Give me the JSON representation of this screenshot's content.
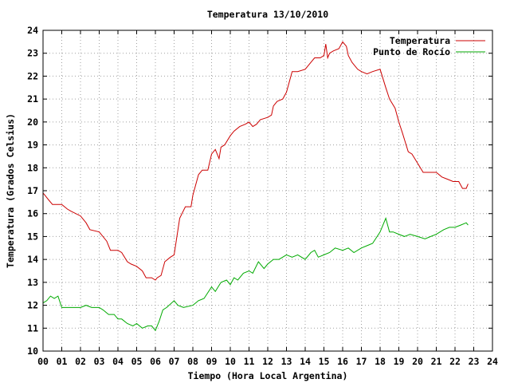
{
  "chart_data": {
    "type": "line",
    "title": "Temperatura 13/10/2010",
    "xlabel": "Tiempo (Hora Local Argentina)",
    "ylabel": "Temperatura (Grados Celsius)",
    "xlim": [
      0,
      24
    ],
    "ylim": [
      10,
      24
    ],
    "grid": true,
    "legend_position": "top-right",
    "x_tick_labels": [
      "00",
      "01",
      "02",
      "03",
      "04",
      "05",
      "06",
      "07",
      "08",
      "09",
      "10",
      "11",
      "12",
      "13",
      "14",
      "15",
      "16",
      "17",
      "18",
      "19",
      "20",
      "21",
      "22",
      "23",
      "24"
    ],
    "y_tick_labels": [
      "10",
      "11",
      "12",
      "13",
      "14",
      "15",
      "16",
      "17",
      "18",
      "19",
      "20",
      "21",
      "22",
      "23",
      "24"
    ],
    "series": [
      {
        "name": "Temperatura",
        "color": "#cc0000",
        "x": [
          0,
          0.1,
          0.3,
          0.5,
          0.8,
          1.0,
          1.3,
          1.5,
          2.0,
          2.3,
          2.5,
          3.0,
          3.4,
          3.6,
          4.0,
          4.2,
          4.5,
          4.7,
          5.0,
          5.3,
          5.5,
          5.8,
          6.0,
          6.1,
          6.3,
          6.5,
          6.8,
          7.0,
          7.3,
          7.6,
          7.9,
          8.0,
          8.3,
          8.5,
          8.8,
          9.0,
          9.2,
          9.4,
          9.5,
          9.7,
          10.0,
          10.2,
          10.5,
          10.8,
          11.0,
          11.2,
          11.4,
          11.6,
          12.0,
          12.2,
          12.3,
          12.5,
          12.8,
          13.0,
          13.3,
          13.6,
          14.0,
          14.3,
          14.5,
          14.8,
          15.0,
          15.1,
          15.2,
          15.3,
          15.5,
          15.8,
          16.0,
          16.2,
          16.3,
          16.5,
          16.8,
          17.0,
          17.3,
          17.6,
          18.0,
          18.3,
          18.5,
          18.8,
          19.0,
          19.2,
          19.5,
          19.7,
          20.0,
          20.3,
          20.7,
          21.0,
          21.3,
          21.6,
          21.9,
          22.2,
          22.4,
          22.6,
          22.7
        ],
        "values": [
          16.9,
          16.8,
          16.6,
          16.4,
          16.4,
          16.4,
          16.2,
          16.1,
          15.9,
          15.6,
          15.3,
          15.2,
          14.8,
          14.4,
          14.4,
          14.3,
          13.9,
          13.8,
          13.7,
          13.5,
          13.2,
          13.2,
          13.1,
          13.2,
          13.3,
          13.9,
          14.1,
          14.2,
          15.8,
          16.3,
          16.3,
          16.8,
          17.7,
          17.9,
          17.9,
          18.6,
          18.8,
          18.4,
          18.9,
          19.0,
          19.4,
          19.6,
          19.8,
          19.9,
          20.0,
          19.8,
          19.9,
          20.1,
          20.2,
          20.3,
          20.7,
          20.9,
          21.0,
          21.3,
          22.2,
          22.2,
          22.3,
          22.6,
          22.8,
          22.8,
          22.9,
          23.4,
          22.8,
          23.0,
          23.1,
          23.2,
          23.5,
          23.3,
          22.9,
          22.6,
          22.3,
          22.2,
          22.1,
          22.2,
          22.3,
          21.5,
          21.0,
          20.6,
          20.0,
          19.5,
          18.7,
          18.6,
          18.2,
          17.8,
          17.8,
          17.8,
          17.6,
          17.5,
          17.4,
          17.4,
          17.1,
          17.1,
          17.3
        ]
      },
      {
        "name": "Punto de Rocío",
        "color": "#00aa00",
        "x": [
          0,
          0.2,
          0.4,
          0.6,
          0.8,
          1.0,
          1.3,
          1.6,
          2.0,
          2.3,
          2.6,
          3.0,
          3.2,
          3.5,
          3.8,
          4.0,
          4.2,
          4.5,
          4.8,
          5.0,
          5.3,
          5.6,
          5.8,
          6.0,
          6.2,
          6.4,
          6.6,
          7.0,
          7.2,
          7.5,
          8.0,
          8.3,
          8.6,
          9.0,
          9.2,
          9.5,
          9.8,
          10.0,
          10.2,
          10.4,
          10.7,
          11.0,
          11.2,
          11.5,
          11.8,
          12.0,
          12.3,
          12.6,
          13.0,
          13.3,
          13.6,
          14.0,
          14.3,
          14.5,
          14.7,
          15.0,
          15.3,
          15.6,
          16.0,
          16.3,
          16.6,
          17.0,
          17.3,
          17.6,
          18.0,
          18.3,
          18.5,
          18.7,
          19.0,
          19.3,
          19.6,
          20.0,
          20.4,
          20.7,
          21.0,
          21.4,
          21.7,
          22.0,
          22.3,
          22.6,
          22.7
        ],
        "values": [
          12.1,
          12.2,
          12.4,
          12.3,
          12.4,
          11.9,
          11.9,
          11.9,
          11.9,
          12.0,
          11.9,
          11.9,
          11.8,
          11.6,
          11.6,
          11.4,
          11.4,
          11.2,
          11.1,
          11.2,
          11.0,
          11.1,
          11.1,
          10.9,
          11.3,
          11.8,
          11.9,
          12.2,
          12.0,
          11.9,
          12.0,
          12.2,
          12.3,
          12.8,
          12.6,
          13.0,
          13.1,
          12.9,
          13.2,
          13.1,
          13.4,
          13.5,
          13.4,
          13.9,
          13.6,
          13.8,
          14.0,
          14.0,
          14.2,
          14.1,
          14.2,
          14.0,
          14.3,
          14.4,
          14.1,
          14.2,
          14.3,
          14.5,
          14.4,
          14.5,
          14.3,
          14.5,
          14.6,
          14.7,
          15.2,
          15.8,
          15.2,
          15.2,
          15.1,
          15.0,
          15.1,
          15.0,
          14.9,
          15.0,
          15.1,
          15.3,
          15.4,
          15.4,
          15.5,
          15.6,
          15.5
        ]
      }
    ]
  }
}
